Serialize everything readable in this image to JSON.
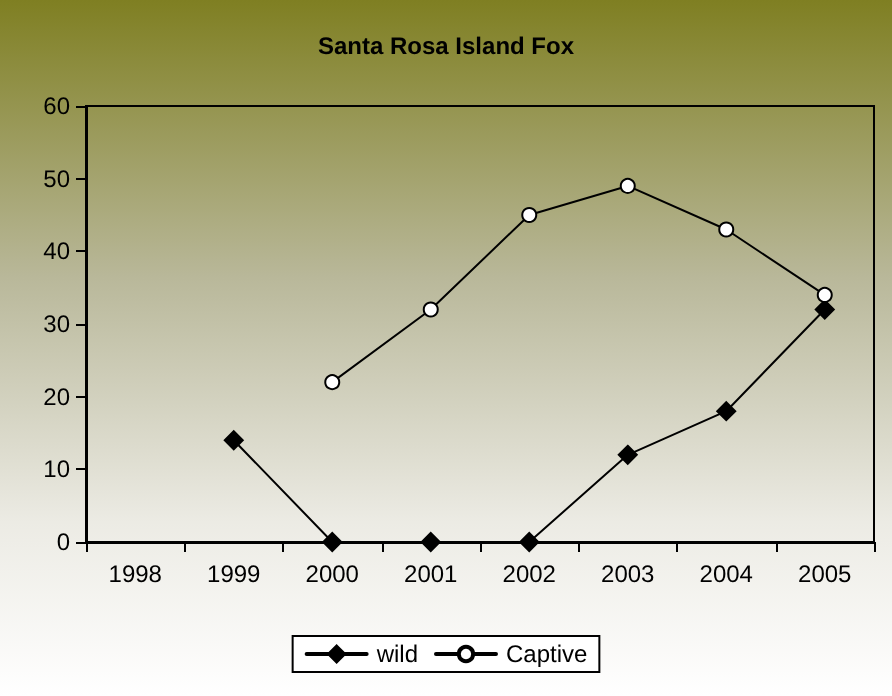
{
  "chart_data": {
    "type": "line",
    "title": "Santa Rosa Island Fox",
    "categories": [
      "1998",
      "1999",
      "2000",
      "2001",
      "2002",
      "2003",
      "2004",
      "2005"
    ],
    "series": [
      {
        "name": "wild",
        "color": "#000000",
        "marker": "diamond",
        "values": [
          null,
          14,
          0,
          0,
          0,
          12,
          18,
          32
        ]
      },
      {
        "name": "Captive",
        "color": "#000000",
        "marker": "circle",
        "values": [
          null,
          null,
          22,
          32,
          45,
          49,
          43,
          34
        ]
      }
    ],
    "ylim": [
      0,
      60
    ],
    "yticks": [
      0,
      10,
      20,
      30,
      40,
      50,
      60
    ],
    "grid": false,
    "legend": "bottom"
  }
}
